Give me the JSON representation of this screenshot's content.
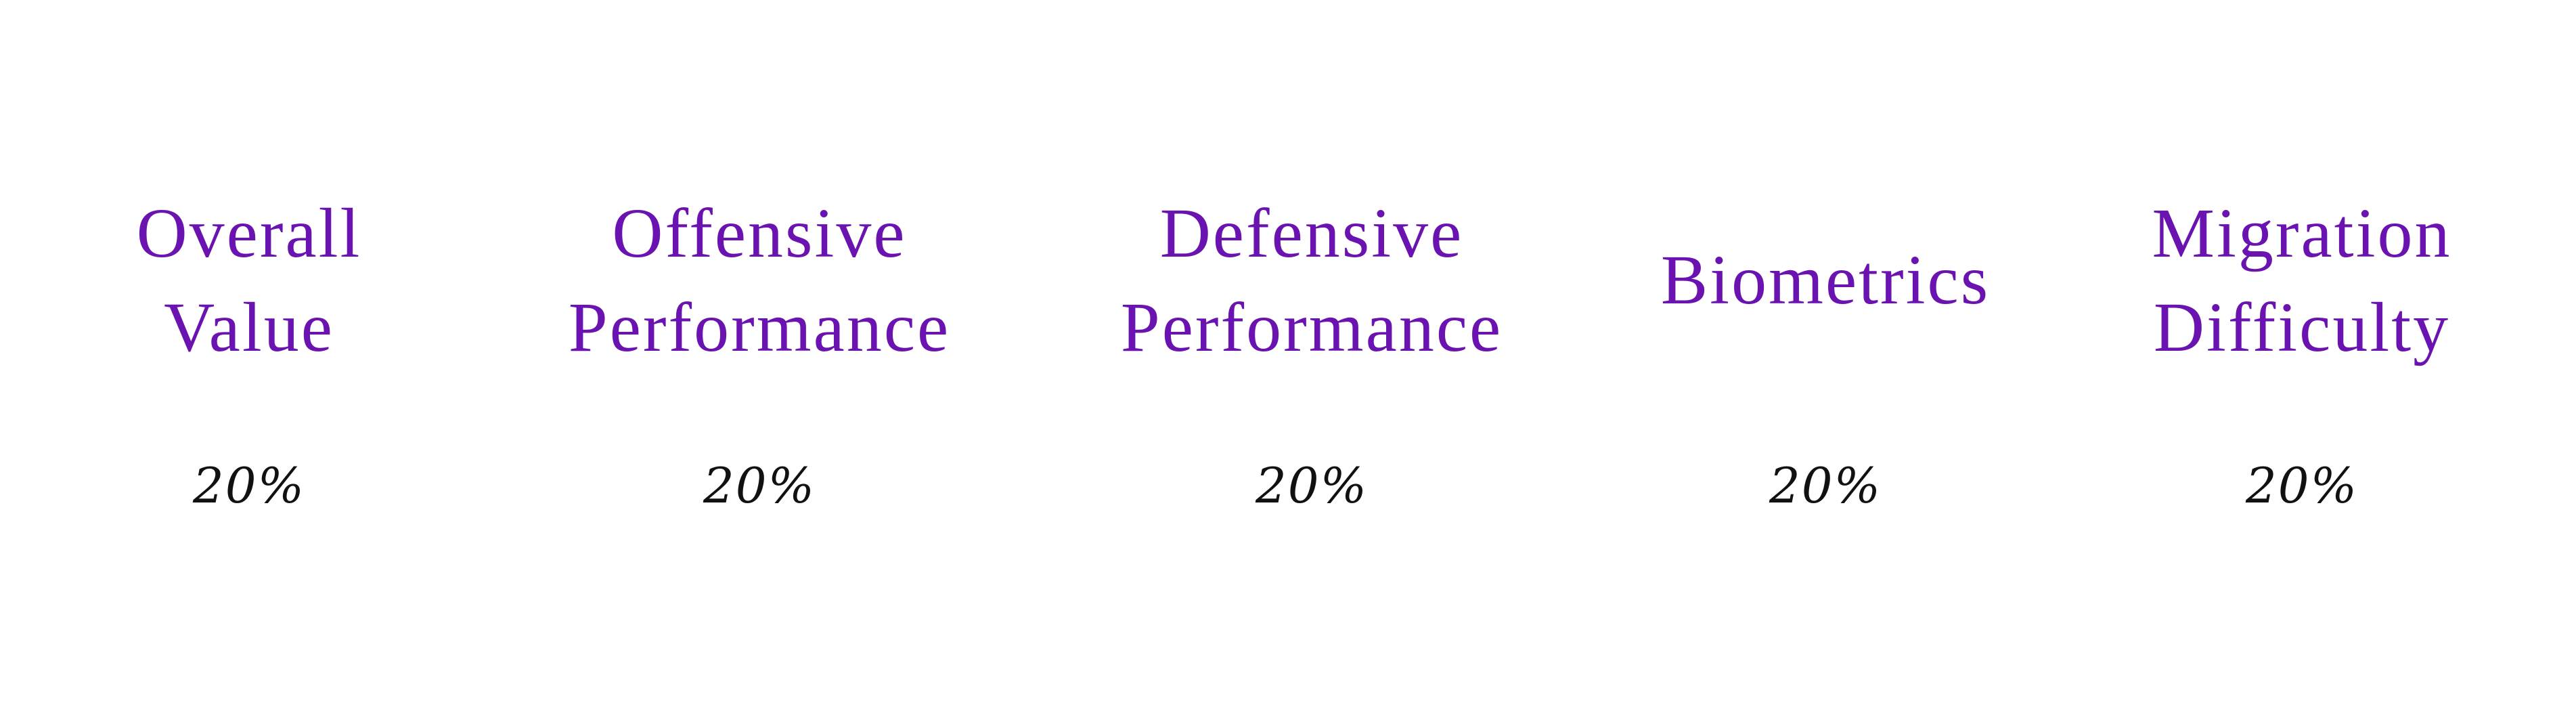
{
  "criteria": [
    {
      "title_line1": "Overall",
      "title_line2": "Value",
      "weight": "20%"
    },
    {
      "title_line1": "Offensive",
      "title_line2": "Performance",
      "weight": "20%"
    },
    {
      "title_line1": "Defensive",
      "title_line2": "Performance",
      "weight": "20%"
    },
    {
      "title_line1": "Biometrics",
      "weight": "20%"
    },
    {
      "title_line1": "Migration",
      "title_line2": "Difficulty",
      "weight": "20%"
    }
  ],
  "colors": {
    "title": "#6a13b0",
    "weight": "#111111",
    "background": "#ffffff"
  }
}
